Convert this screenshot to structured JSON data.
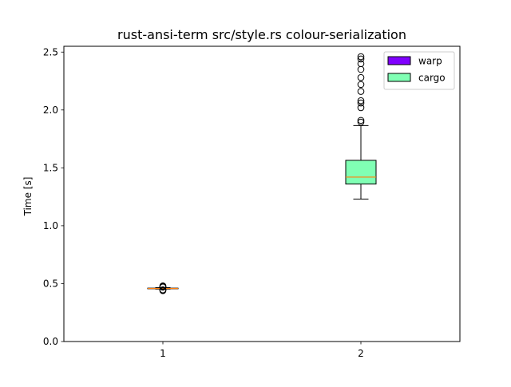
{
  "chart_data": {
    "type": "box",
    "title": "rust-ansi-term src/style.rs colour-serialization",
    "xlabel": "",
    "ylabel": "Time [s]",
    "ylim": [
      0.0,
      2.55
    ],
    "xlim": [
      0.5,
      2.5
    ],
    "yticks": [
      "0.0",
      "0.5",
      "1.0",
      "1.5",
      "2.0",
      "2.5"
    ],
    "categories": [
      "1",
      "2"
    ],
    "series": [
      {
        "name": "warp",
        "color": "#8000ff",
        "position": 1,
        "whisker_low": 0.453,
        "q1": 0.456,
        "median": 0.458,
        "q3": 0.461,
        "whisker_high": 0.465,
        "outliers": [
          0.44,
          0.443,
          0.447,
          0.47,
          0.474,
          0.477,
          0.48
        ]
      },
      {
        "name": "cargo",
        "color": "#80ffb4",
        "position": 2,
        "whisker_low": 1.23,
        "q1": 1.36,
        "median": 1.42,
        "q3": 1.565,
        "whisker_high": 1.865,
        "outliers": [
          1.895,
          1.91,
          2.02,
          2.06,
          2.08,
          2.16,
          2.22,
          2.28,
          2.35,
          2.4,
          2.44,
          2.46
        ]
      }
    ],
    "median_color": "#ff7f0e",
    "grid": false,
    "legend_position": "top-right"
  }
}
